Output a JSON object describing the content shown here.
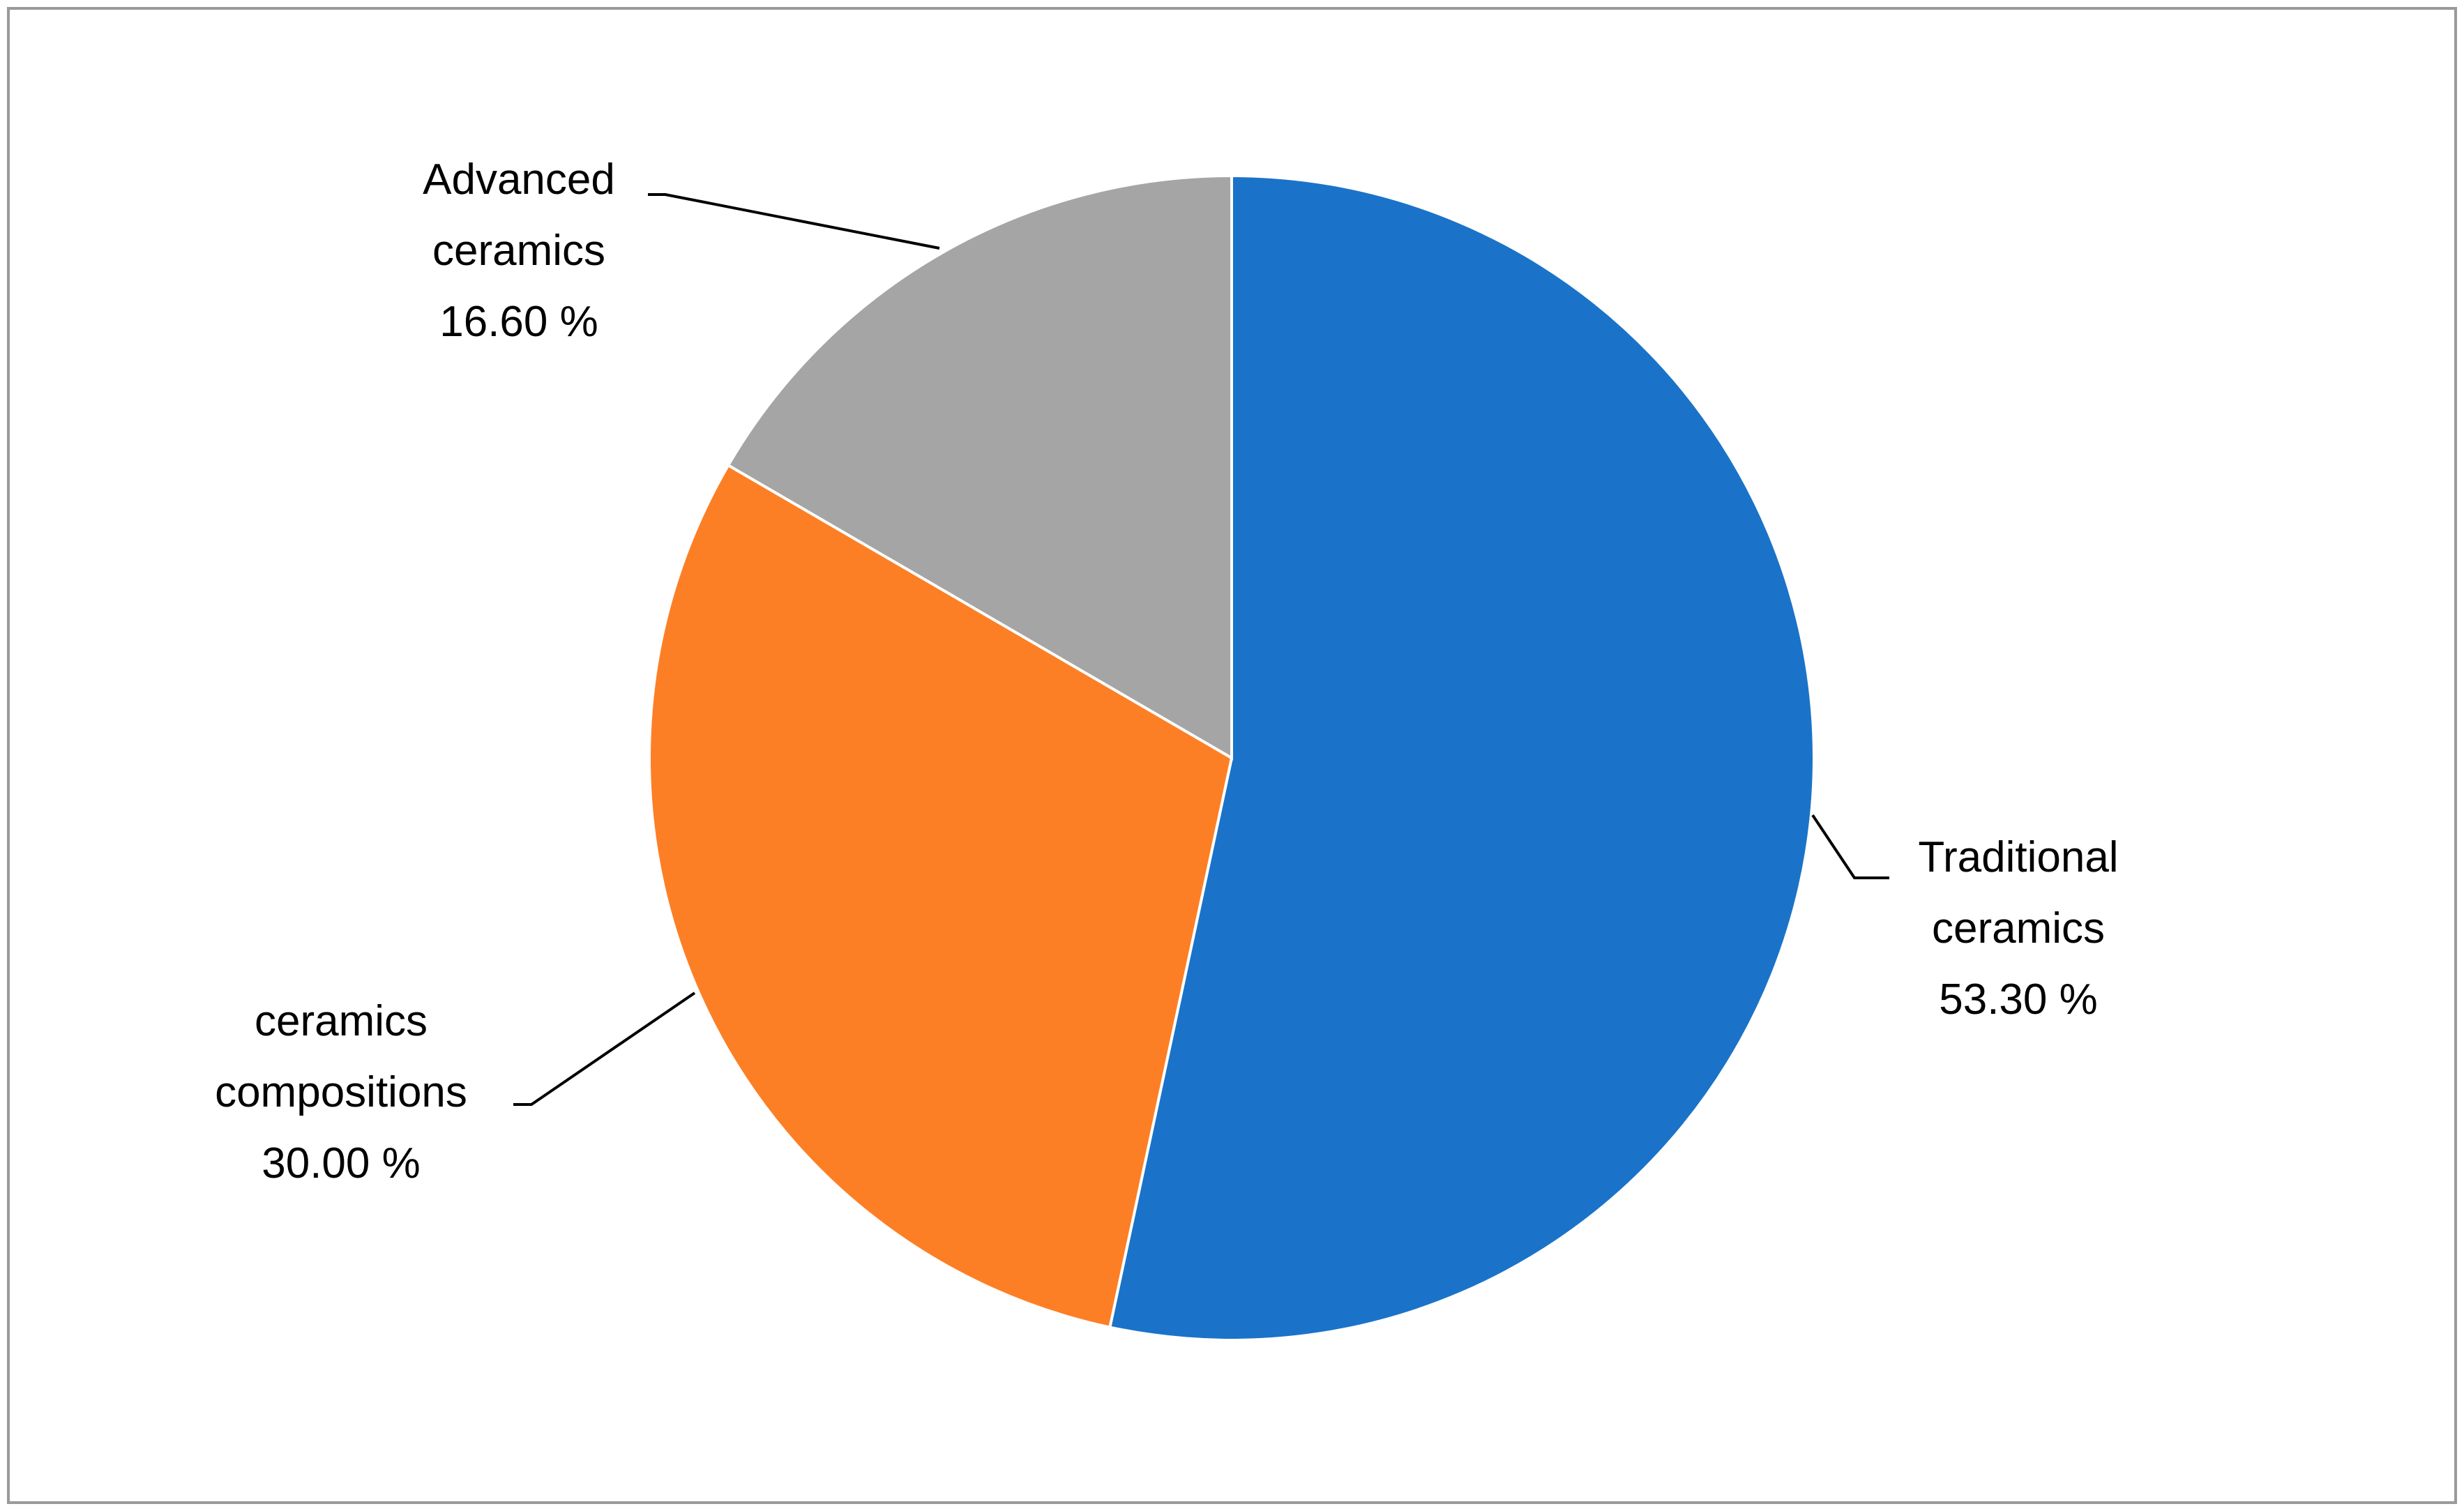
{
  "chart_data": {
    "type": "pie",
    "slices": [
      {
        "label_lines": [
          "Traditional",
          "ceramics"
        ],
        "value": 53.3,
        "value_text": "53.30 %",
        "color": "#1a73c8"
      },
      {
        "label_lines": [
          "ceramics",
          "compositions"
        ],
        "value": 30.0,
        "value_text": "30.00 %",
        "color": "#fd7f25"
      },
      {
        "label_lines": [
          "Advanced",
          "ceramics"
        ],
        "value": 16.6,
        "value_text": "16.60 %",
        "color": "#a5a5a5"
      }
    ],
    "start_angle": "12 o'clock",
    "direction": "clockwise",
    "legend": "none",
    "data_labels": "outside with leader lines",
    "border_color": "#9a9a9a"
  }
}
